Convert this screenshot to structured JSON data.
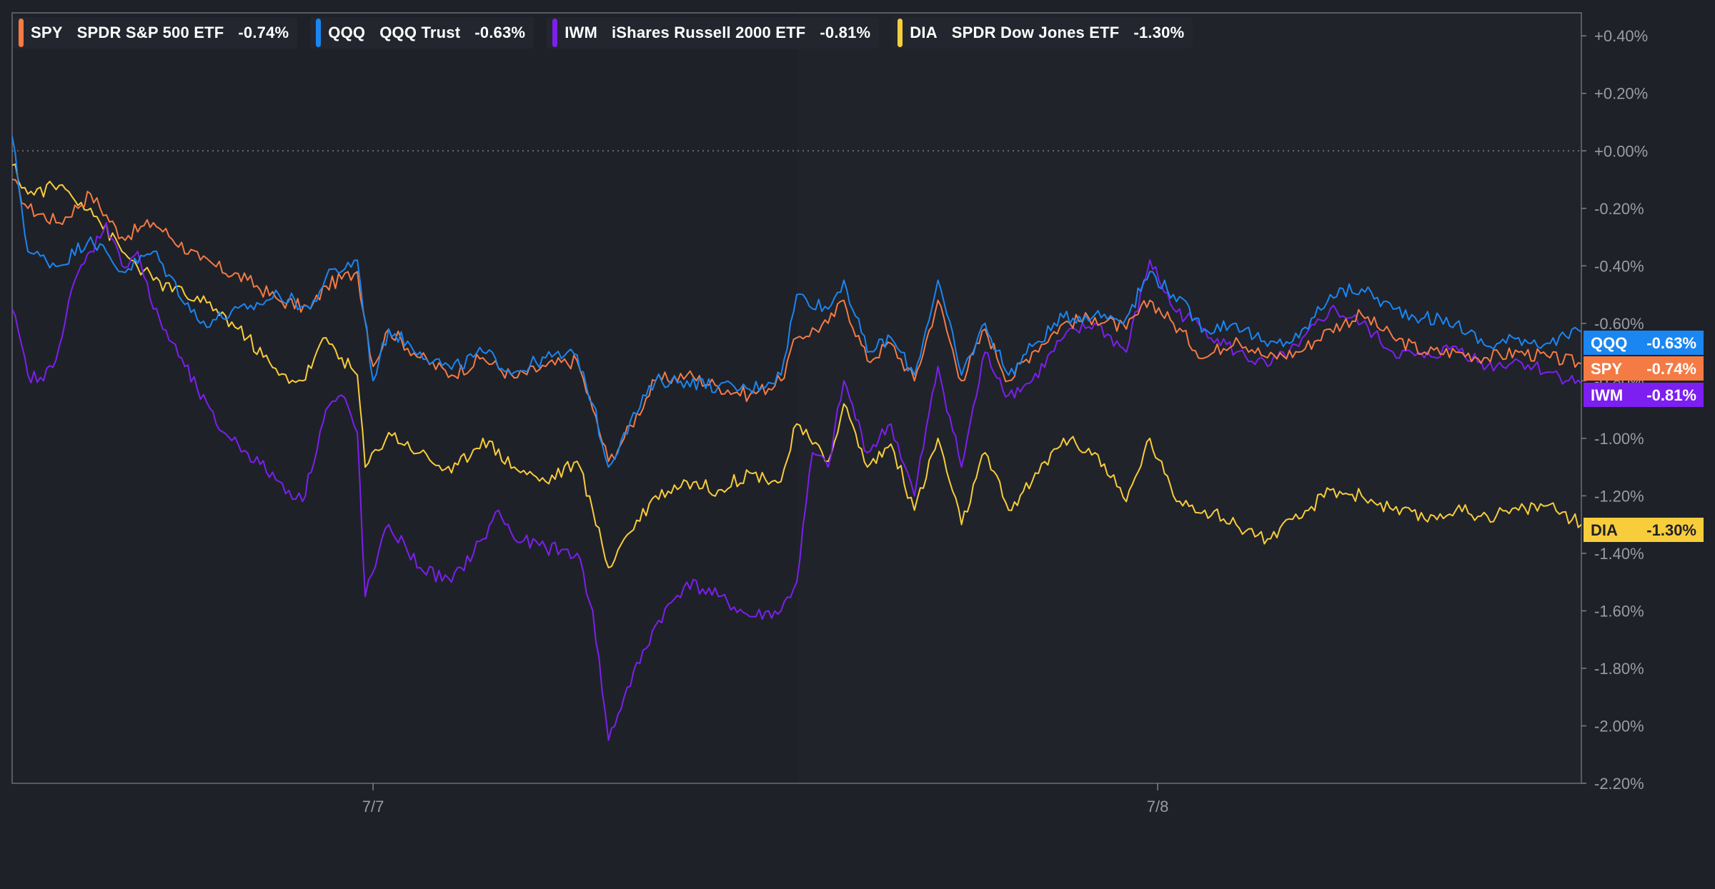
{
  "chart_data": {
    "type": "line",
    "title": "",
    "xlabel": "",
    "ylabel": "",
    "ylim": [
      -2.2,
      0.5
    ],
    "y_ticks": [
      "+0.40%",
      "+0.20%",
      "+0.00%",
      "-0.20%",
      "-0.40%",
      "-0.60%",
      "-0.80%",
      "-1.00%",
      "-1.20%",
      "-1.40%",
      "-1.60%",
      "-1.80%",
      "-2.00%",
      "-2.20%"
    ],
    "y_tick_values": [
      0.4,
      0.2,
      0.0,
      -0.2,
      -0.4,
      -0.6,
      -0.8,
      -1.0,
      -1.2,
      -1.4,
      -1.6,
      -1.8,
      -2.0,
      -2.2
    ],
    "x_ticks": [
      "7/7",
      "7/8"
    ],
    "x_tick_positions": [
      0.23,
      0.73
    ],
    "zero_line": true,
    "grid": false,
    "legend_position": "top-left",
    "series": [
      {
        "ticker": "SPY",
        "name": "SPDR S&P 500 ETF",
        "change": "-0.74%",
        "color": "#f47b44",
        "values": [
          [
            0.0,
            -0.1
          ],
          [
            0.01,
            -0.2
          ],
          [
            0.03,
            -0.25
          ],
          [
            0.05,
            -0.15
          ],
          [
            0.07,
            -0.3
          ],
          [
            0.09,
            -0.25
          ],
          [
            0.12,
            -0.38
          ],
          [
            0.15,
            -0.45
          ],
          [
            0.17,
            -0.52
          ],
          [
            0.19,
            -0.55
          ],
          [
            0.2,
            -0.47
          ],
          [
            0.22,
            -0.42
          ],
          [
            0.23,
            -0.75
          ],
          [
            0.24,
            -0.62
          ],
          [
            0.26,
            -0.72
          ],
          [
            0.28,
            -0.78
          ],
          [
            0.3,
            -0.72
          ],
          [
            0.32,
            -0.79
          ],
          [
            0.34,
            -0.75
          ],
          [
            0.36,
            -0.73
          ],
          [
            0.37,
            -0.9
          ],
          [
            0.38,
            -1.08
          ],
          [
            0.39,
            -1.0
          ],
          [
            0.41,
            -0.8
          ],
          [
            0.43,
            -0.78
          ],
          [
            0.45,
            -0.82
          ],
          [
            0.47,
            -0.85
          ],
          [
            0.49,
            -0.8
          ],
          [
            0.5,
            -0.65
          ],
          [
            0.52,
            -0.6
          ],
          [
            0.53,
            -0.52
          ],
          [
            0.545,
            -0.73
          ],
          [
            0.56,
            -0.67
          ],
          [
            0.575,
            -0.8
          ],
          [
            0.59,
            -0.52
          ],
          [
            0.605,
            -0.8
          ],
          [
            0.62,
            -0.62
          ],
          [
            0.635,
            -0.8
          ],
          [
            0.65,
            -0.7
          ],
          [
            0.67,
            -0.6
          ],
          [
            0.69,
            -0.58
          ],
          [
            0.71,
            -0.62
          ],
          [
            0.725,
            -0.52
          ],
          [
            0.74,
            -0.6
          ],
          [
            0.76,
            -0.72
          ],
          [
            0.78,
            -0.65
          ],
          [
            0.8,
            -0.72
          ],
          [
            0.82,
            -0.7
          ],
          [
            0.84,
            -0.62
          ],
          [
            0.86,
            -0.57
          ],
          [
            0.88,
            -0.65
          ],
          [
            0.9,
            -0.7
          ],
          [
            0.92,
            -0.7
          ],
          [
            0.94,
            -0.72
          ],
          [
            0.96,
            -0.7
          ],
          [
            0.98,
            -0.72
          ],
          [
            1.0,
            -0.74
          ]
        ]
      },
      {
        "ticker": "QQQ",
        "name": "QQQ Trust",
        "change": "-0.63%",
        "color": "#1a86f2",
        "values": [
          [
            0.0,
            0.05
          ],
          [
            0.01,
            -0.35
          ],
          [
            0.03,
            -0.4
          ],
          [
            0.05,
            -0.3
          ],
          [
            0.07,
            -0.42
          ],
          [
            0.09,
            -0.35
          ],
          [
            0.12,
            -0.6
          ],
          [
            0.15,
            -0.55
          ],
          [
            0.17,
            -0.5
          ],
          [
            0.19,
            -0.55
          ],
          [
            0.2,
            -0.44
          ],
          [
            0.22,
            -0.38
          ],
          [
            0.23,
            -0.8
          ],
          [
            0.24,
            -0.62
          ],
          [
            0.26,
            -0.7
          ],
          [
            0.28,
            -0.76
          ],
          [
            0.3,
            -0.7
          ],
          [
            0.32,
            -0.77
          ],
          [
            0.34,
            -0.72
          ],
          [
            0.36,
            -0.71
          ],
          [
            0.37,
            -0.88
          ],
          [
            0.38,
            -1.1
          ],
          [
            0.39,
            -0.98
          ],
          [
            0.41,
            -0.8
          ],
          [
            0.43,
            -0.8
          ],
          [
            0.45,
            -0.82
          ],
          [
            0.47,
            -0.83
          ],
          [
            0.49,
            -0.78
          ],
          [
            0.5,
            -0.5
          ],
          [
            0.52,
            -0.55
          ],
          [
            0.53,
            -0.45
          ],
          [
            0.545,
            -0.7
          ],
          [
            0.56,
            -0.65
          ],
          [
            0.575,
            -0.78
          ],
          [
            0.59,
            -0.45
          ],
          [
            0.605,
            -0.78
          ],
          [
            0.62,
            -0.6
          ],
          [
            0.635,
            -0.78
          ],
          [
            0.65,
            -0.68
          ],
          [
            0.67,
            -0.58
          ],
          [
            0.69,
            -0.57
          ],
          [
            0.71,
            -0.58
          ],
          [
            0.725,
            -0.42
          ],
          [
            0.74,
            -0.5
          ],
          [
            0.76,
            -0.62
          ],
          [
            0.78,
            -0.6
          ],
          [
            0.8,
            -0.68
          ],
          [
            0.82,
            -0.65
          ],
          [
            0.84,
            -0.5
          ],
          [
            0.86,
            -0.48
          ],
          [
            0.88,
            -0.55
          ],
          [
            0.9,
            -0.58
          ],
          [
            0.92,
            -0.6
          ],
          [
            0.94,
            -0.68
          ],
          [
            0.96,
            -0.65
          ],
          [
            0.98,
            -0.67
          ],
          [
            1.0,
            -0.63
          ]
        ]
      },
      {
        "ticker": "IWM",
        "name": "iShares Russell 2000 ETF",
        "change": "-0.81%",
        "color": "#7c1ff0",
        "values": [
          [
            0.0,
            -0.55
          ],
          [
            0.01,
            -0.78
          ],
          [
            0.02,
            -0.8
          ],
          [
            0.03,
            -0.68
          ],
          [
            0.04,
            -0.45
          ],
          [
            0.05,
            -0.35
          ],
          [
            0.06,
            -0.25
          ],
          [
            0.07,
            -0.4
          ],
          [
            0.08,
            -0.35
          ],
          [
            0.09,
            -0.55
          ],
          [
            0.11,
            -0.75
          ],
          [
            0.13,
            -0.95
          ],
          [
            0.15,
            -1.05
          ],
          [
            0.17,
            -1.15
          ],
          [
            0.185,
            -1.22
          ],
          [
            0.2,
            -0.9
          ],
          [
            0.21,
            -0.85
          ],
          [
            0.22,
            -0.98
          ],
          [
            0.225,
            -1.55
          ],
          [
            0.24,
            -1.3
          ],
          [
            0.26,
            -1.45
          ],
          [
            0.28,
            -1.5
          ],
          [
            0.3,
            -1.35
          ],
          [
            0.31,
            -1.25
          ],
          [
            0.32,
            -1.35
          ],
          [
            0.34,
            -1.38
          ],
          [
            0.36,
            -1.4
          ],
          [
            0.37,
            -1.6
          ],
          [
            0.38,
            -2.05
          ],
          [
            0.39,
            -1.9
          ],
          [
            0.41,
            -1.65
          ],
          [
            0.43,
            -1.5
          ],
          [
            0.45,
            -1.55
          ],
          [
            0.47,
            -1.62
          ],
          [
            0.49,
            -1.6
          ],
          [
            0.5,
            -1.5
          ],
          [
            0.51,
            -1.05
          ],
          [
            0.52,
            -1.1
          ],
          [
            0.53,
            -0.8
          ],
          [
            0.545,
            -1.05
          ],
          [
            0.56,
            -0.95
          ],
          [
            0.575,
            -1.2
          ],
          [
            0.59,
            -0.75
          ],
          [
            0.605,
            -1.1
          ],
          [
            0.62,
            -0.7
          ],
          [
            0.635,
            -0.85
          ],
          [
            0.65,
            -0.8
          ],
          [
            0.67,
            -0.65
          ],
          [
            0.69,
            -0.6
          ],
          [
            0.71,
            -0.7
          ],
          [
            0.725,
            -0.38
          ],
          [
            0.74,
            -0.55
          ],
          [
            0.76,
            -0.62
          ],
          [
            0.78,
            -0.7
          ],
          [
            0.8,
            -0.75
          ],
          [
            0.82,
            -0.68
          ],
          [
            0.84,
            -0.55
          ],
          [
            0.86,
            -0.6
          ],
          [
            0.88,
            -0.7
          ],
          [
            0.9,
            -0.72
          ],
          [
            0.92,
            -0.68
          ],
          [
            0.94,
            -0.75
          ],
          [
            0.96,
            -0.73
          ],
          [
            0.98,
            -0.77
          ],
          [
            1.0,
            -0.81
          ]
        ]
      },
      {
        "ticker": "DIA",
        "name": "SPDR Dow Jones ETF",
        "change": "-1.30%",
        "color": "#f8cd3b",
        "values": [
          [
            0.0,
            -0.05
          ],
          [
            0.01,
            -0.15
          ],
          [
            0.03,
            -0.12
          ],
          [
            0.05,
            -0.2
          ],
          [
            0.07,
            -0.35
          ],
          [
            0.09,
            -0.45
          ],
          [
            0.11,
            -0.5
          ],
          [
            0.13,
            -0.55
          ],
          [
            0.15,
            -0.65
          ],
          [
            0.17,
            -0.78
          ],
          [
            0.185,
            -0.8
          ],
          [
            0.2,
            -0.65
          ],
          [
            0.21,
            -0.72
          ],
          [
            0.22,
            -0.78
          ],
          [
            0.225,
            -1.1
          ],
          [
            0.24,
            -0.98
          ],
          [
            0.26,
            -1.05
          ],
          [
            0.28,
            -1.12
          ],
          [
            0.3,
            -1.0
          ],
          [
            0.32,
            -1.1
          ],
          [
            0.34,
            -1.15
          ],
          [
            0.36,
            -1.08
          ],
          [
            0.37,
            -1.25
          ],
          [
            0.38,
            -1.45
          ],
          [
            0.39,
            -1.35
          ],
          [
            0.41,
            -1.2
          ],
          [
            0.43,
            -1.15
          ],
          [
            0.45,
            -1.18
          ],
          [
            0.47,
            -1.12
          ],
          [
            0.49,
            -1.15
          ],
          [
            0.5,
            -0.95
          ],
          [
            0.51,
            -1.02
          ],
          [
            0.52,
            -1.08
          ],
          [
            0.53,
            -0.88
          ],
          [
            0.545,
            -1.1
          ],
          [
            0.56,
            -1.02
          ],
          [
            0.575,
            -1.25
          ],
          [
            0.59,
            -1.0
          ],
          [
            0.605,
            -1.3
          ],
          [
            0.62,
            -1.05
          ],
          [
            0.635,
            -1.25
          ],
          [
            0.65,
            -1.15
          ],
          [
            0.67,
            -1.0
          ],
          [
            0.69,
            -1.05
          ],
          [
            0.71,
            -1.22
          ],
          [
            0.725,
            -1.0
          ],
          [
            0.74,
            -1.2
          ],
          [
            0.76,
            -1.25
          ],
          [
            0.78,
            -1.3
          ],
          [
            0.8,
            -1.35
          ],
          [
            0.82,
            -1.28
          ],
          [
            0.84,
            -1.18
          ],
          [
            0.86,
            -1.2
          ],
          [
            0.88,
            -1.25
          ],
          [
            0.9,
            -1.28
          ],
          [
            0.92,
            -1.25
          ],
          [
            0.94,
            -1.27
          ],
          [
            0.96,
            -1.25
          ],
          [
            0.98,
            -1.23
          ],
          [
            1.0,
            -1.3
          ]
        ]
      }
    ],
    "value_tags": [
      {
        "ticker": "QQQ",
        "value": "-0.63%",
        "color": "#1a86f2"
      },
      {
        "ticker": "SPY",
        "value": "-0.74%",
        "color": "#f47b44"
      },
      {
        "ticker": "IWM",
        "value": "-0.81%",
        "color": "#7c1ff0"
      },
      {
        "ticker": "DIA",
        "value": "-1.30%",
        "color": "#f8cd3b"
      }
    ]
  }
}
